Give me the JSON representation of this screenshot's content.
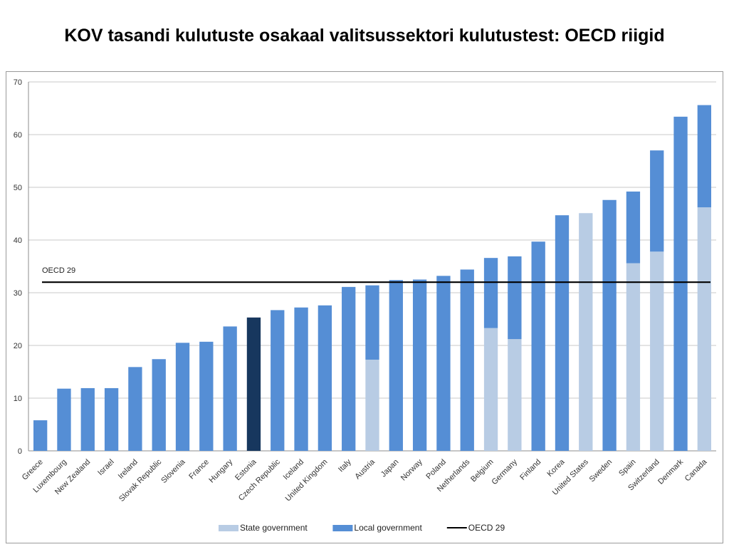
{
  "title": "KOV tasandi kulutuste osakaal valitsussektori kulutustest: OECD riigid",
  "chart_data": {
    "type": "bar",
    "stacked": true,
    "categories": [
      "Greece",
      "Luxembourg",
      "New Zealand",
      "Israel",
      "Ireland",
      "Slovak Republic",
      "Slovenia",
      "France",
      "Hungary",
      "Estonia",
      "Czech Republic",
      "Iceland",
      "United Kingdom",
      "Italy",
      "Austria",
      "Japan",
      "Norway",
      "Poland",
      "Netherlands",
      "Belgium",
      "Germany",
      "Finland",
      "Korea",
      "United States",
      "Sweden",
      "Spain",
      "Switzerland",
      "Denmark",
      "Canada"
    ],
    "series": [
      {
        "name": "State government",
        "color": "#b8cce4",
        "values": [
          0,
          0,
          0,
          0,
          0,
          0,
          0,
          0,
          0,
          0,
          0,
          0,
          0,
          0,
          17.3,
          0,
          0,
          0,
          0,
          23.3,
          21.2,
          0,
          0,
          45.1,
          0,
          35.6,
          37.8,
          0,
          46.2
        ]
      },
      {
        "name": "Local government",
        "color": "#558ed5",
        "values": [
          5.8,
          11.8,
          11.9,
          11.9,
          15.9,
          17.4,
          20.5,
          20.7,
          23.6,
          25.3,
          26.7,
          27.2,
          27.6,
          31.1,
          14.1,
          32.4,
          32.5,
          33.2,
          34.4,
          13.3,
          15.7,
          39.7,
          44.7,
          0,
          47.6,
          13.6,
          19.2,
          63.4,
          19.4
        ]
      }
    ],
    "highlight": {
      "category": "Estonia",
      "color": "#17375e"
    },
    "reference_line": {
      "label": "OECD 29",
      "value": 32,
      "color": "#000000"
    },
    "y_ticks": [
      0,
      10,
      20,
      30,
      40,
      50,
      60,
      70
    ],
    "ylim": [
      0,
      70
    ],
    "grid": true,
    "legend": {
      "position": "bottom",
      "items": [
        {
          "label": "State government",
          "kind": "box",
          "color": "#b8cce4"
        },
        {
          "label": "Local government",
          "kind": "box",
          "color": "#558ed5"
        },
        {
          "label": "OECD 29",
          "kind": "line",
          "color": "#000000"
        }
      ]
    }
  }
}
